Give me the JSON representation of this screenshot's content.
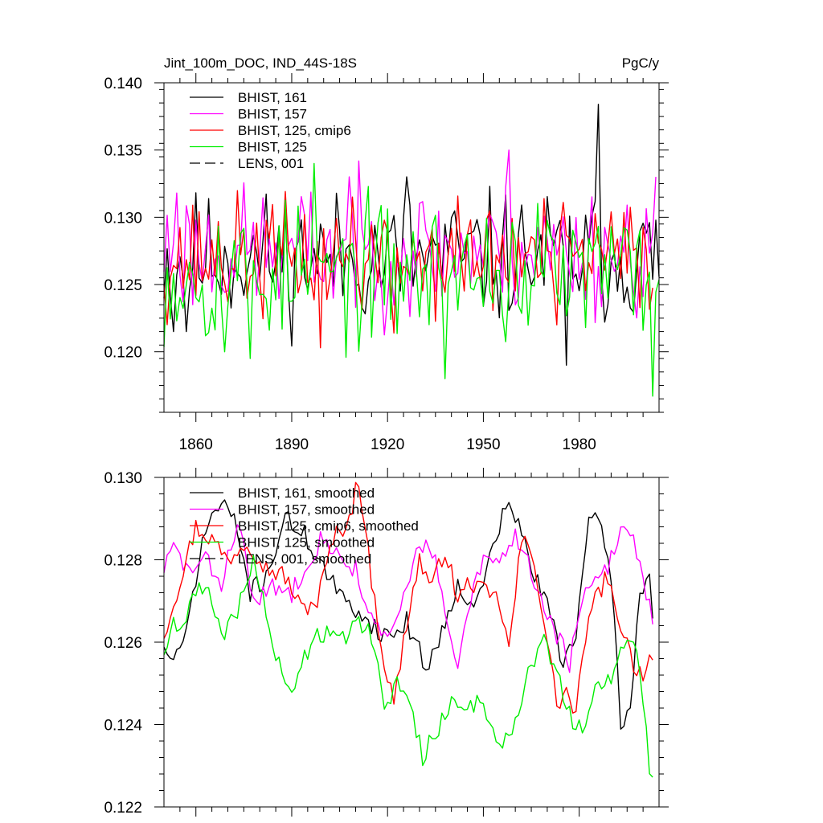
{
  "chart_data": [
    {
      "type": "line",
      "title_left": "Jint_100m_DOC, IND_44S-18S",
      "title_right": "PgC/y",
      "xlim": [
        1850,
        2005
      ],
      "ylim": [
        0.1155,
        0.14
      ],
      "xticks": [
        1860,
        1890,
        1920,
        1950,
        1980
      ],
      "xtick_labels": [
        "1860",
        "1890",
        "1920",
        "1950",
        "1980"
      ],
      "yticks": [
        0.12,
        0.125,
        0.13,
        0.135,
        0.14
      ],
      "ytick_labels": [
        "0.120",
        "0.125",
        "0.130",
        "0.135",
        "0.140"
      ],
      "series": [
        {
          "name": "BHIST, 161",
          "color": "#000000",
          "dash": "solid",
          "x_start": 1850,
          "x_end": 2005,
          "mean": 0.127,
          "amp": 0.0024,
          "seed": 11,
          "anchors": [
            [
              1853,
              0.1215
            ],
            [
              1857,
              0.1215
            ],
            [
              1926,
              0.133
            ],
            [
              1976,
              0.119
            ],
            [
              1986,
              0.1384
            ]
          ]
        },
        {
          "name": "BHIST, 157",
          "color": "#ff00ff",
          "dash": "solid",
          "x_start": 1850,
          "x_end": 2004,
          "mean": 0.1275,
          "amp": 0.0024,
          "seed": 23,
          "anchors": [
            [
              1854,
              0.1318
            ],
            [
              1908,
              0.133
            ],
            [
              1958,
              0.135
            ],
            [
              2004,
              0.133
            ]
          ]
        },
        {
          "name": "BHIST, 125, cmip6",
          "color": "#ff0000",
          "dash": "solid",
          "x_start": 1850,
          "x_end": 2003,
          "mean": 0.127,
          "amp": 0.0022,
          "seed": 37,
          "anchors": [
            [
              1899,
              0.1203
            ],
            [
              1909,
              0.1315
            ],
            [
              1922,
              0.1214
            ],
            [
              1973,
              0.122
            ]
          ]
        },
        {
          "name": "BHIST, 125",
          "color": "#00ee00",
          "dash": "solid",
          "x_start": 1850,
          "x_end": 2005,
          "mean": 0.1258,
          "amp": 0.0026,
          "seed": 53,
          "anchors": [
            [
              1869,
              0.12
            ],
            [
              1877,
              0.1195
            ],
            [
              1897,
              0.134
            ],
            [
              1938,
              0.118
            ],
            [
              2003,
              0.1167
            ]
          ]
        },
        {
          "name": "LENS, 001",
          "color": "#000000",
          "dash": "dashed",
          "values": []
        }
      ]
    },
    {
      "type": "line",
      "xlim": [
        1850,
        2005
      ],
      "ylim": [
        0.122,
        0.13
      ],
      "xticks": [
        1860,
        1890,
        1920,
        1950,
        1980
      ],
      "yticks": [
        0.122,
        0.124,
        0.126,
        0.128,
        0.13
      ],
      "ytick_labels": [
        "0.122",
        "0.124",
        "0.126",
        "0.128",
        "0.130"
      ],
      "series": [
        {
          "name": "BHIST, 161, smoothed",
          "color": "#000000",
          "dash": "solid",
          "x_start": 1850,
          "x_end": 2003,
          "seed": 71,
          "noise": 0.00025,
          "anchors": [
            [
              1850,
              0.126
            ],
            [
              1851,
              0.1256
            ],
            [
              1856,
              0.1258
            ],
            [
              1860,
              0.1276
            ],
            [
              1864,
              0.129
            ],
            [
              1869,
              0.1294
            ],
            [
              1873,
              0.1287
            ],
            [
              1877,
              0.1272
            ],
            [
              1882,
              0.1276
            ],
            [
              1888,
              0.129
            ],
            [
              1894,
              0.1286
            ],
            [
              1900,
              0.1278
            ],
            [
              1906,
              0.127
            ],
            [
              1912,
              0.1267
            ],
            [
              1918,
              0.1262
            ],
            [
              1922,
              0.1262
            ],
            [
              1926,
              0.1265
            ],
            [
              1932,
              0.1254
            ],
            [
              1937,
              0.1262
            ],
            [
              1942,
              0.1275
            ],
            [
              1947,
              0.1267
            ],
            [
              1951,
              0.1278
            ],
            [
              1957,
              0.1293
            ],
            [
              1961,
              0.1289
            ],
            [
              1966,
              0.1276
            ],
            [
              1971,
              0.1267
            ],
            [
              1975,
              0.1255
            ],
            [
              1979,
              0.1263
            ],
            [
              1983,
              0.1288
            ],
            [
              1987,
              0.129
            ],
            [
              1991,
              0.1268
            ],
            [
              1993,
              0.1238
            ],
            [
              1996,
              0.1245
            ],
            [
              1999,
              0.1272
            ],
            [
              2002,
              0.1277
            ],
            [
              2003,
              0.1265
            ]
          ]
        },
        {
          "name": "BHIST, 157, smoothed",
          "color": "#ff00ff",
          "dash": "solid",
          "x_start": 1850,
          "x_end": 2003,
          "seed": 83,
          "noise": 0.00025,
          "anchors": [
            [
              1850,
              0.1278
            ],
            [
              1853,
              0.1283
            ],
            [
              1858,
              0.1277
            ],
            [
              1863,
              0.128
            ],
            [
              1868,
              0.1274
            ],
            [
              1873,
              0.129
            ],
            [
              1878,
              0.127
            ],
            [
              1884,
              0.1273
            ],
            [
              1890,
              0.1272
            ],
            [
              1895,
              0.128
            ],
            [
              1900,
              0.1286
            ],
            [
              1905,
              0.128
            ],
            [
              1910,
              0.1278
            ],
            [
              1915,
              0.1265
            ],
            [
              1920,
              0.126
            ],
            [
              1925,
              0.127
            ],
            [
              1930,
              0.1285
            ],
            [
              1935,
              0.128
            ],
            [
              1940,
              0.1258
            ],
            [
              1942,
              0.1254
            ],
            [
              1946,
              0.127
            ],
            [
              1950,
              0.128
            ],
            [
              1955,
              0.1279
            ],
            [
              1960,
              0.1286
            ],
            [
              1964,
              0.128
            ],
            [
              1968,
              0.127
            ],
            [
              1973,
              0.1262
            ],
            [
              1977,
              0.1255
            ],
            [
              1981,
              0.127
            ],
            [
              1986,
              0.1275
            ],
            [
              1990,
              0.128
            ],
            [
              1993,
              0.1288
            ],
            [
              1996,
              0.1287
            ],
            [
              1999,
              0.128
            ],
            [
              2003,
              0.1265
            ]
          ]
        },
        {
          "name": "BHIST, 125, cmip6, smoothed",
          "color": "#ff0000",
          "dash": "solid",
          "x_start": 1850,
          "x_end": 2003,
          "seed": 97,
          "noise": 0.00025,
          "anchors": [
            [
              1850,
              0.1262
            ],
            [
              1855,
              0.1275
            ],
            [
              1860,
              0.1288
            ],
            [
              1865,
              0.1285
            ],
            [
              1870,
              0.128
            ],
            [
              1876,
              0.1285
            ],
            [
              1882,
              0.1278
            ],
            [
              1888,
              0.1276
            ],
            [
              1893,
              0.1268
            ],
            [
              1898,
              0.127
            ],
            [
              1903,
              0.1285
            ],
            [
              1908,
              0.129
            ],
            [
              1911,
              0.13
            ],
            [
              1915,
              0.1275
            ],
            [
              1919,
              0.1255
            ],
            [
              1922,
              0.1245
            ],
            [
              1926,
              0.1265
            ],
            [
              1930,
              0.128
            ],
            [
              1934,
              0.1273
            ],
            [
              1938,
              0.1283
            ],
            [
              1942,
              0.127
            ],
            [
              1946,
              0.1275
            ],
            [
              1950,
              0.1272
            ],
            [
              1955,
              0.127
            ],
            [
              1958,
              0.1258
            ],
            [
              1962,
              0.1285
            ],
            [
              1966,
              0.128
            ],
            [
              1970,
              0.126
            ],
            [
              1973,
              0.1245
            ],
            [
              1976,
              0.1248
            ],
            [
              1979,
              0.1242
            ],
            [
              1982,
              0.1262
            ],
            [
              1985,
              0.127
            ],
            [
              1988,
              0.1275
            ],
            [
              1991,
              0.127
            ],
            [
              1994,
              0.1262
            ],
            [
              1997,
              0.1255
            ],
            [
              2000,
              0.1252
            ],
            [
              2003,
              0.1258
            ]
          ]
        },
        {
          "name": "BHIST, 125, smoothed",
          "color": "#00ee00",
          "dash": "solid",
          "x_start": 1850,
          "x_end": 2003,
          "seed": 109,
          "noise": 0.00025,
          "anchors": [
            [
              1850,
              0.1258
            ],
            [
              1853,
              0.1265
            ],
            [
              1857,
              0.1265
            ],
            [
              1861,
              0.1275
            ],
            [
              1865,
              0.127
            ],
            [
              1868,
              0.126
            ],
            [
              1873,
              0.1268
            ],
            [
              1878,
              0.128
            ],
            [
              1884,
              0.126
            ],
            [
              1888,
              0.1248
            ],
            [
              1892,
              0.1252
            ],
            [
              1897,
              0.1262
            ],
            [
              1902,
              0.1262
            ],
            [
              1907,
              0.1262
            ],
            [
              1911,
              0.1265
            ],
            [
              1915,
              0.1262
            ],
            [
              1919,
              0.1245
            ],
            [
              1923,
              0.125
            ],
            [
              1927,
              0.1245
            ],
            [
              1931,
              0.1232
            ],
            [
              1935,
              0.1238
            ],
            [
              1940,
              0.1245
            ],
            [
              1945,
              0.1245
            ],
            [
              1950,
              0.1245
            ],
            [
              1955,
              0.1235
            ],
            [
              1960,
              0.124
            ],
            [
              1965,
              0.1255
            ],
            [
              1969,
              0.126
            ],
            [
              1973,
              0.1252
            ],
            [
              1977,
              0.1242
            ],
            [
              1981,
              0.1238
            ],
            [
              1985,
              0.1248
            ],
            [
              1989,
              0.125
            ],
            [
              1992,
              0.1255
            ],
            [
              1995,
              0.126
            ],
            [
              1998,
              0.1258
            ],
            [
              2000,
              0.1245
            ],
            [
              2002,
              0.123
            ],
            [
              2003,
              0.1226
            ]
          ]
        },
        {
          "name": "LENS, 001, smoothed",
          "color": "#000000",
          "dash": "dashed",
          "values": []
        }
      ]
    }
  ]
}
